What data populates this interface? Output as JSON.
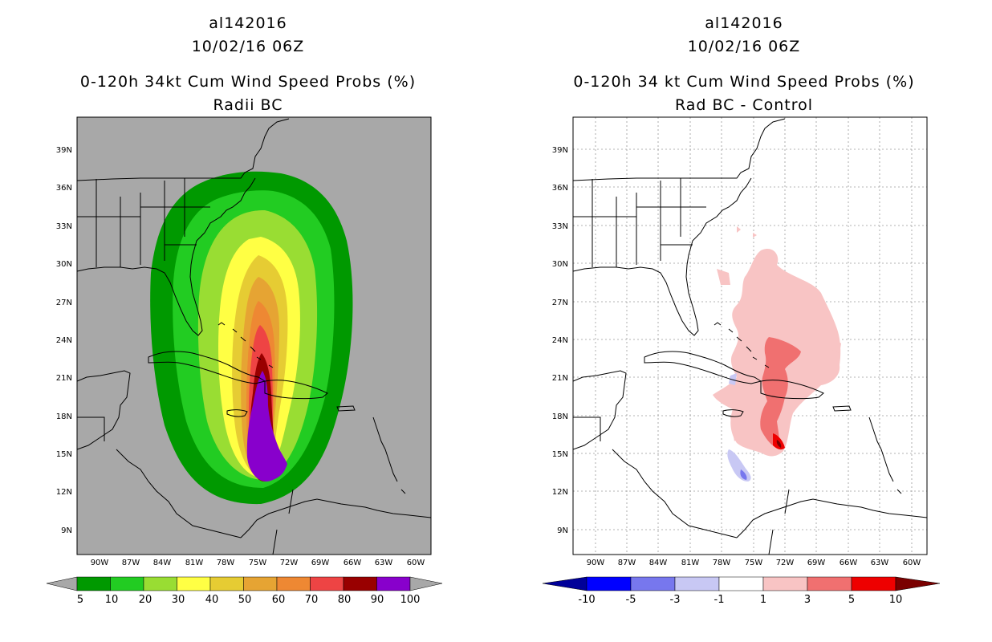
{
  "panels": {
    "left": {
      "storm_id": "al142016",
      "datetime": "10/02/16 06Z",
      "title": "0-120h 34kt Cum Wind Speed Probs (%)",
      "subtitle": "Radii BC",
      "colorbar": {
        "labels": [
          "5",
          "10",
          "20",
          "30",
          "40",
          "50",
          "60",
          "70",
          "80",
          "90",
          "100"
        ],
        "colors": [
          "#009900",
          "#22cc22",
          "#99dd33",
          "#ffff44",
          "#e6cc33",
          "#e6a433",
          "#ee8833",
          "#ee4444",
          "#990000",
          "#8800cc"
        ],
        "end_color": "#a8a8a8"
      }
    },
    "right": {
      "storm_id": "al142016",
      "datetime": "10/02/16 06Z",
      "title": "0-120h 34 kt Cum Wind Speed Probs (%)",
      "subtitle": "Rad BC - Control",
      "colorbar": {
        "labels": [
          "-10",
          "-5",
          "-3",
          "-1",
          "1",
          "3",
          "5",
          "10"
        ],
        "colors": [
          "#0000ff",
          "#7777ee",
          "#c8c8f4",
          "#ffffff",
          "#f8c4c4",
          "#f07070",
          "#ee0000"
        ],
        "end_low": "#000099",
        "end_high": "#7a0000"
      }
    }
  },
  "axes": {
    "lat_labels": [
      "39N",
      "36N",
      "33N",
      "30N",
      "27N",
      "24N",
      "21N",
      "18N",
      "15N",
      "12N",
      "9N"
    ],
    "lon_labels": [
      "90W",
      "87W",
      "84W",
      "81W",
      "78W",
      "75W",
      "72W",
      "69W",
      "66W",
      "63W",
      "60W"
    ]
  },
  "colors": {
    "land_background": "#a8a8a8",
    "coastline": "#000000",
    "grid": "#9a9a9a"
  }
}
